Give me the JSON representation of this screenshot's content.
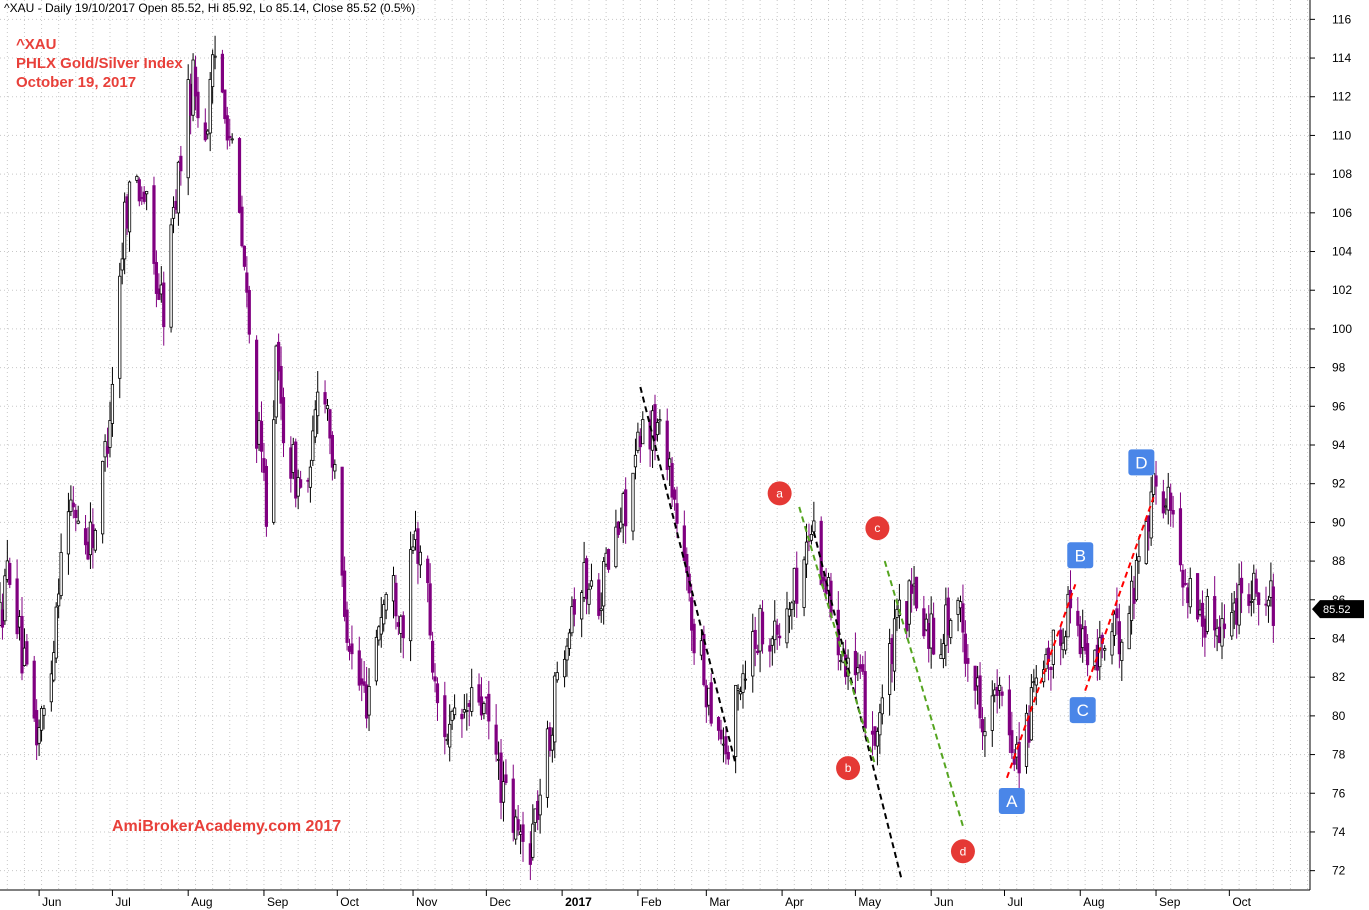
{
  "header": {
    "info": "^XAU - Daily 19/10/2017 Open 85.52, Hi 85.92, Lo 85.14, Close 85.52 (0.5%)"
  },
  "titles": {
    "symbol": "^XAU",
    "name": "PHLX Gold/Silver Index",
    "date": "October 19, 2017"
  },
  "watermark": "AmiBrokerAcademy.com  2017",
  "colors": {
    "up_candle": "#000000",
    "down_candle": "#800080",
    "grid": "#c8c8c8",
    "title": "#e8403a",
    "marker_red": "#e53935",
    "marker_blue": "#4a86e8",
    "trend_black": "#000000",
    "trend_green": "#55a520",
    "trend_red": "#ff0000"
  },
  "chart_data": {
    "type": "candlestick",
    "ylim": [
      71,
      117
    ],
    "y_ticks": [
      72,
      74,
      76,
      78,
      80,
      82,
      84,
      86,
      88,
      90,
      92,
      94,
      96,
      98,
      100,
      102,
      104,
      106,
      108,
      110,
      112,
      114,
      116
    ],
    "x_range": [
      "2016-05-16",
      "2017-11-03"
    ],
    "months": [
      {
        "label": "Jun",
        "date": "2016-06-01"
      },
      {
        "label": "Jul",
        "date": "2016-07-01"
      },
      {
        "label": "Aug",
        "date": "2016-08-01"
      },
      {
        "label": "Sep",
        "date": "2016-09-01"
      },
      {
        "label": "Oct",
        "date": "2016-10-01"
      },
      {
        "label": "Nov",
        "date": "2016-11-01"
      },
      {
        "label": "Dec",
        "date": "2016-12-01"
      },
      {
        "label": "2017",
        "date": "2017-01-01",
        "bold": true
      },
      {
        "label": "Feb",
        "date": "2017-02-01"
      },
      {
        "label": "Mar",
        "date": "2017-03-01"
      },
      {
        "label": "Apr",
        "date": "2017-04-01"
      },
      {
        "label": "May",
        "date": "2017-05-01"
      },
      {
        "label": "Jun",
        "date": "2017-06-01"
      },
      {
        "label": "Jul",
        "date": "2017-07-01"
      },
      {
        "label": "Aug",
        "date": "2017-08-01"
      },
      {
        "label": "Sep",
        "date": "2017-09-01"
      },
      {
        "label": "Oct",
        "date": "2017-10-01"
      }
    ],
    "price_path": [
      [
        "2016-05-16",
        85
      ],
      [
        "2016-05-20",
        88
      ],
      [
        "2016-05-25",
        83
      ],
      [
        "2016-05-31",
        79
      ],
      [
        "2016-06-05",
        81
      ],
      [
        "2016-06-10",
        89
      ],
      [
        "2016-06-15",
        91
      ],
      [
        "2016-06-20",
        89
      ],
      [
        "2016-06-25",
        90
      ],
      [
        "2016-06-30",
        96
      ],
      [
        "2016-07-03",
        101
      ],
      [
        "2016-07-06",
        106
      ],
      [
        "2016-07-10",
        108
      ],
      [
        "2016-07-14",
        107
      ],
      [
        "2016-07-18",
        103
      ],
      [
        "2016-07-22",
        101
      ],
      [
        "2016-07-26",
        106
      ],
      [
        "2016-07-31",
        111
      ],
      [
        "2016-08-03",
        113
      ],
      [
        "2016-08-08",
        110
      ],
      [
        "2016-08-12",
        114
      ],
      [
        "2016-08-16",
        112
      ],
      [
        "2016-08-20",
        108
      ],
      [
        "2016-08-24",
        103
      ],
      [
        "2016-08-28",
        96
      ],
      [
        "2016-09-02",
        91
      ],
      [
        "2016-09-06",
        98
      ],
      [
        "2016-09-10",
        94
      ],
      [
        "2016-09-15",
        92
      ],
      [
        "2016-09-20",
        92
      ],
      [
        "2016-09-24",
        99
      ],
      [
        "2016-09-28",
        95
      ],
      [
        "2016-10-03",
        87
      ],
      [
        "2016-10-08",
        82
      ],
      [
        "2016-10-13",
        81
      ],
      [
        "2016-10-18",
        85
      ],
      [
        "2016-10-23",
        87
      ],
      [
        "2016-10-28",
        85
      ],
      [
        "2016-11-02",
        89
      ],
      [
        "2016-11-06",
        88
      ],
      [
        "2016-11-10",
        81
      ],
      [
        "2016-11-16",
        79
      ],
      [
        "2016-11-22",
        80
      ],
      [
        "2016-11-28",
        81
      ],
      [
        "2016-12-03",
        79
      ],
      [
        "2016-12-08",
        76
      ],
      [
        "2016-12-13",
        74
      ],
      [
        "2016-12-18",
        73
      ],
      [
        "2016-12-23",
        76
      ],
      [
        "2016-12-27",
        79
      ],
      [
        "2016-12-31",
        83
      ],
      [
        "2017-01-05",
        86
      ],
      [
        "2017-01-10",
        87
      ],
      [
        "2017-01-15",
        86
      ],
      [
        "2017-01-20",
        88
      ],
      [
        "2017-01-25",
        90
      ],
      [
        "2017-01-31",
        93
      ],
      [
        "2017-02-04",
        95
      ],
      [
        "2017-02-08",
        95
      ],
      [
        "2017-02-13",
        94
      ],
      [
        "2017-02-18",
        89
      ],
      [
        "2017-02-23",
        85
      ],
      [
        "2017-02-28",
        82
      ],
      [
        "2017-03-05",
        80
      ],
      [
        "2017-03-10",
        78
      ],
      [
        "2017-03-15",
        82
      ],
      [
        "2017-03-20",
        84
      ],
      [
        "2017-03-25",
        85
      ],
      [
        "2017-03-30",
        84
      ],
      [
        "2017-04-05",
        86
      ],
      [
        "2017-04-10",
        88
      ],
      [
        "2017-04-13",
        90
      ],
      [
        "2017-04-17",
        88
      ],
      [
        "2017-04-22",
        85
      ],
      [
        "2017-04-28",
        83
      ],
      [
        "2017-05-04",
        81
      ],
      [
        "2017-05-09",
        79
      ],
      [
        "2017-05-14",
        82
      ],
      [
        "2017-05-19",
        85
      ],
      [
        "2017-05-24",
        86
      ],
      [
        "2017-05-29",
        85
      ],
      [
        "2017-06-03",
        84
      ],
      [
        "2017-06-08",
        85
      ],
      [
        "2017-06-13",
        85
      ],
      [
        "2017-06-18",
        82
      ],
      [
        "2017-06-23",
        80
      ],
      [
        "2017-06-28",
        81
      ],
      [
        "2017-07-03",
        79
      ],
      [
        "2017-07-08",
        78
      ],
      [
        "2017-07-13",
        81
      ],
      [
        "2017-07-18",
        82
      ],
      [
        "2017-07-23",
        84
      ],
      [
        "2017-07-28",
        86
      ],
      [
        "2017-08-02",
        84
      ],
      [
        "2017-08-06",
        82
      ],
      [
        "2017-08-10",
        84
      ],
      [
        "2017-08-16",
        84
      ],
      [
        "2017-08-22",
        86
      ],
      [
        "2017-08-27",
        90
      ],
      [
        "2017-09-01",
        92
      ],
      [
        "2017-09-06",
        91
      ],
      [
        "2017-09-11",
        88
      ],
      [
        "2017-09-16",
        86
      ],
      [
        "2017-09-21",
        85
      ],
      [
        "2017-09-26",
        85
      ],
      [
        "2017-10-02",
        85
      ],
      [
        "2017-10-06",
        87
      ],
      [
        "2017-10-11",
        87
      ],
      [
        "2017-10-16",
        86
      ],
      [
        "2017-10-19",
        85.52
      ]
    ],
    "last_price": {
      "value": 85.52,
      "label": "85.52"
    },
    "trendlines": [
      {
        "color": "trend_black",
        "from": [
          "2017-02-02",
          97.0
        ],
        "to": [
          "2017-03-13",
          77.5
        ]
      },
      {
        "color": "trend_black",
        "from": [
          "2017-04-14",
          89.5
        ],
        "to": [
          "2017-05-20",
          71.5
        ]
      },
      {
        "color": "trend_green",
        "from": [
          "2017-04-08",
          90.8
        ],
        "to": [
          "2017-05-09",
          77.5
        ]
      },
      {
        "color": "trend_green",
        "from": [
          "2017-05-13",
          88.0
        ],
        "to": [
          "2017-06-14",
          74.3
        ]
      },
      {
        "color": "trend_red",
        "from": [
          "2017-07-02",
          76.8
        ],
        "to": [
          "2017-07-30",
          86.8
        ]
      },
      {
        "color": "trend_red",
        "from": [
          "2017-08-03",
          81.3
        ],
        "to": [
          "2017-08-31",
          91.3
        ]
      }
    ],
    "annotations": [
      {
        "label": "a",
        "shape": "circle",
        "color": "marker_red",
        "date": "2017-03-31",
        "price": 91.5
      },
      {
        "label": "b",
        "shape": "circle",
        "color": "marker_red",
        "date": "2017-04-28",
        "price": 77.3
      },
      {
        "label": "c",
        "shape": "circle",
        "color": "marker_red",
        "date": "2017-05-10",
        "price": 89.7
      },
      {
        "label": "d",
        "shape": "circle",
        "color": "marker_red",
        "date": "2017-06-14",
        "price": 73.0
      },
      {
        "label": "A",
        "shape": "square",
        "color": "marker_blue",
        "date": "2017-07-04",
        "price": 75.6
      },
      {
        "label": "B",
        "shape": "square",
        "color": "marker_blue",
        "date": "2017-08-01",
        "price": 88.3
      },
      {
        "label": "C",
        "shape": "square",
        "color": "marker_blue",
        "date": "2017-08-02",
        "price": 80.3
      },
      {
        "label": "D",
        "shape": "square",
        "color": "marker_blue",
        "date": "2017-08-26",
        "price": 93.1
      }
    ]
  }
}
